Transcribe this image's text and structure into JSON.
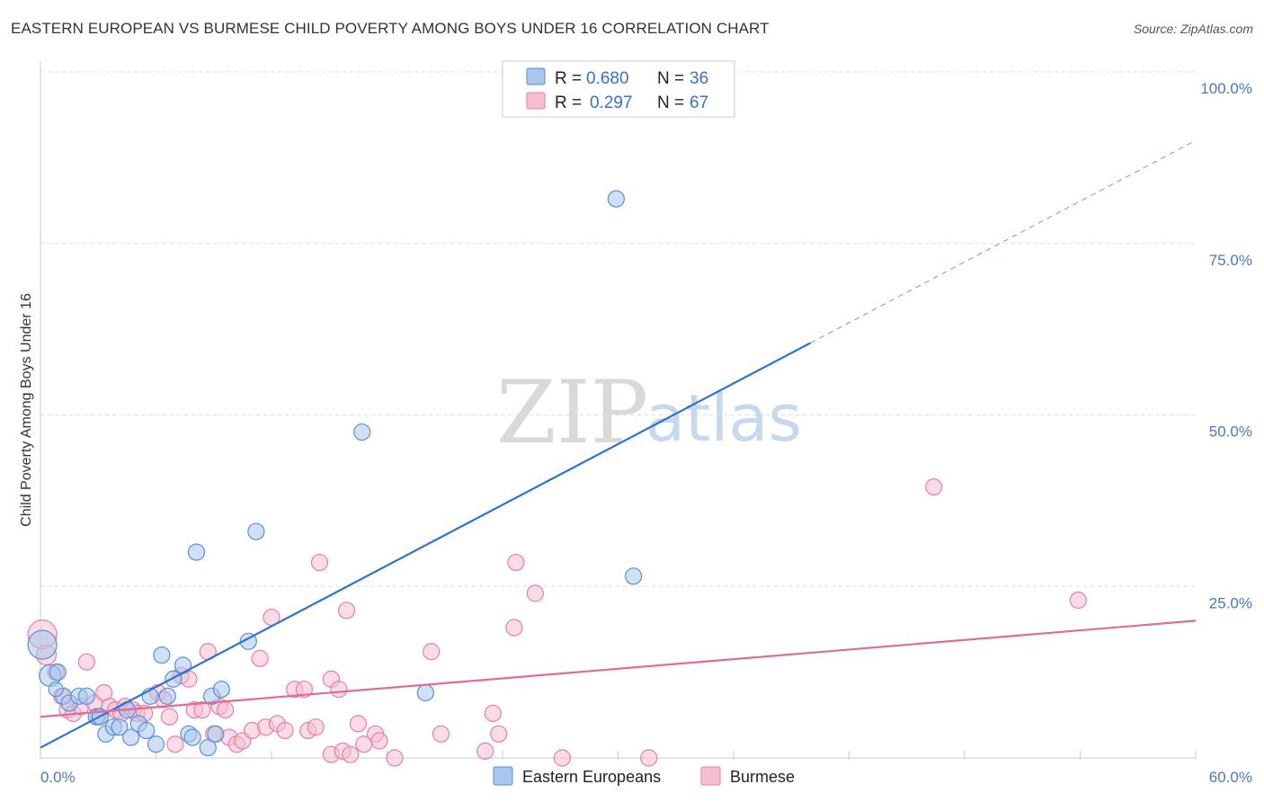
{
  "title": "EASTERN EUROPEAN VS BURMESE CHILD POVERTY AMONG BOYS UNDER 16 CORRELATION CHART",
  "source": "Source: ZipAtlas.com",
  "watermark": {
    "zip": "ZIP",
    "atlas": "atlas"
  },
  "legend_box": {
    "rows": [
      {
        "r_label": "R =",
        "r_value": "0.680",
        "n_label": "N =",
        "n_value": "36"
      },
      {
        "r_label": "R =",
        "r_value": "0.297",
        "n_label": "N =",
        "n_value": "67"
      }
    ]
  },
  "bottom_legend": [
    "Eastern Europeans",
    "Burmese"
  ],
  "colors": {
    "eastern_fill": "#a9c6ee",
    "eastern_stroke": "#5b8fd6",
    "eastern_line": "#2f73d0",
    "burmese_fill": "#f6bdd1",
    "burmese_stroke": "#e57fa4",
    "burmese_line": "#e06b98",
    "grid": "#dddddd",
    "tick_text": "#4a78c4"
  },
  "chart_data": {
    "type": "scatter",
    "title": "EASTERN EUROPEAN VS BURMESE CHILD POVERTY AMONG BOYS UNDER 16 CORRELATION CHART",
    "xlabel": "",
    "ylabel": "Child Poverty Among Boys Under 16",
    "xlim": [
      0,
      60
    ],
    "ylim": [
      0,
      100
    ],
    "x_tick_labels": [
      "0.0%",
      "60.0%"
    ],
    "y_ticks": [
      25,
      50,
      75,
      100
    ],
    "y_tick_labels": [
      "25.0%",
      "50.0%",
      "75.0%",
      "100.0%"
    ],
    "grid": true,
    "legend_position": "top-center",
    "series": [
      {
        "name": "Eastern Europeans",
        "R": 0.68,
        "N": 36,
        "trend": {
          "x0": 0,
          "y0": 1.5,
          "x1": 40,
          "y1": 60.5,
          "dashed_to_x": 60,
          "dashed_to_y": 90
        },
        "points": [
          {
            "x": 0.1,
            "y": 16.5,
            "s": 16
          },
          {
            "x": 0.5,
            "y": 12.0,
            "s": 12
          },
          {
            "x": 0.9,
            "y": 12.5,
            "s": 9
          },
          {
            "x": 1.2,
            "y": 9.0,
            "s": 9
          },
          {
            "x": 1.5,
            "y": 8.0,
            "s": 9
          },
          {
            "x": 2.0,
            "y": 9.0,
            "s": 9
          },
          {
            "x": 2.4,
            "y": 9.0,
            "s": 9
          },
          {
            "x": 2.9,
            "y": 6.0,
            "s": 9
          },
          {
            "x": 3.1,
            "y": 6.0,
            "s": 9
          },
          {
            "x": 3.4,
            "y": 3.5,
            "s": 9
          },
          {
            "x": 3.8,
            "y": 4.5,
            "s": 9
          },
          {
            "x": 4.1,
            "y": 4.5,
            "s": 9
          },
          {
            "x": 4.5,
            "y": 7.0,
            "s": 9
          },
          {
            "x": 4.7,
            "y": 3.0,
            "s": 9
          },
          {
            "x": 5.1,
            "y": 5.0,
            "s": 9
          },
          {
            "x": 5.5,
            "y": 4.0,
            "s": 9
          },
          {
            "x": 5.7,
            "y": 9.0,
            "s": 9
          },
          {
            "x": 6.0,
            "y": 2.0,
            "s": 9
          },
          {
            "x": 6.3,
            "y": 15.0,
            "s": 9
          },
          {
            "x": 6.6,
            "y": 9.0,
            "s": 9
          },
          {
            "x": 6.9,
            "y": 11.5,
            "s": 9
          },
          {
            "x": 7.4,
            "y": 13.5,
            "s": 9
          },
          {
            "x": 7.7,
            "y": 3.5,
            "s": 9
          },
          {
            "x": 7.9,
            "y": 3.0,
            "s": 9
          },
          {
            "x": 8.1,
            "y": 30.0,
            "s": 9
          },
          {
            "x": 8.7,
            "y": 1.5,
            "s": 9
          },
          {
            "x": 8.9,
            "y": 9.0,
            "s": 9
          },
          {
            "x": 9.1,
            "y": 3.5,
            "s": 9
          },
          {
            "x": 9.4,
            "y": 10.0,
            "s": 9
          },
          {
            "x": 10.8,
            "y": 17.0,
            "s": 9
          },
          {
            "x": 11.2,
            "y": 33.0,
            "s": 9
          },
          {
            "x": 16.7,
            "y": 47.5,
            "s": 9
          },
          {
            "x": 20.0,
            "y": 9.5,
            "s": 9
          },
          {
            "x": 29.9,
            "y": 81.5,
            "s": 9
          },
          {
            "x": 30.8,
            "y": 26.5,
            "s": 9
          },
          {
            "x": 0.8,
            "y": 10.0,
            "s": 8
          }
        ]
      },
      {
        "name": "Burmese",
        "R": 0.297,
        "N": 67,
        "trend": {
          "x0": 0,
          "y0": 6.0,
          "x1": 60,
          "y1": 20.0
        },
        "points": [
          {
            "x": 0.1,
            "y": 18.0,
            "s": 16
          },
          {
            "x": 0.3,
            "y": 15.0,
            "s": 11
          },
          {
            "x": 0.8,
            "y": 12.5,
            "s": 9
          },
          {
            "x": 1.1,
            "y": 9.0,
            "s": 9
          },
          {
            "x": 1.4,
            "y": 7.0,
            "s": 9
          },
          {
            "x": 1.7,
            "y": 6.5,
            "s": 9
          },
          {
            "x": 2.1,
            "y": 7.5,
            "s": 9
          },
          {
            "x": 2.4,
            "y": 14.0,
            "s": 9
          },
          {
            "x": 2.8,
            "y": 8.0,
            "s": 9
          },
          {
            "x": 3.0,
            "y": 6.0,
            "s": 9
          },
          {
            "x": 3.3,
            "y": 9.5,
            "s": 9
          },
          {
            "x": 3.6,
            "y": 7.5,
            "s": 9
          },
          {
            "x": 3.9,
            "y": 7.0,
            "s": 9
          },
          {
            "x": 4.2,
            "y": 6.5,
            "s": 9
          },
          {
            "x": 4.4,
            "y": 7.5,
            "s": 9
          },
          {
            "x": 4.8,
            "y": 7.0,
            "s": 9
          },
          {
            "x": 5.0,
            "y": 6.5,
            "s": 9
          },
          {
            "x": 5.4,
            "y": 6.5,
            "s": 9
          },
          {
            "x": 6.1,
            "y": 9.5,
            "s": 9
          },
          {
            "x": 6.4,
            "y": 8.5,
            "s": 9
          },
          {
            "x": 6.7,
            "y": 6.0,
            "s": 9
          },
          {
            "x": 7.0,
            "y": 2.0,
            "s": 9
          },
          {
            "x": 7.3,
            "y": 12.0,
            "s": 9
          },
          {
            "x": 7.7,
            "y": 11.5,
            "s": 9
          },
          {
            "x": 8.0,
            "y": 7.0,
            "s": 9
          },
          {
            "x": 8.4,
            "y": 7.0,
            "s": 9
          },
          {
            "x": 8.7,
            "y": 15.5,
            "s": 9
          },
          {
            "x": 9.0,
            "y": 3.5,
            "s": 9
          },
          {
            "x": 9.3,
            "y": 7.5,
            "s": 9
          },
          {
            "x": 9.6,
            "y": 7.0,
            "s": 9
          },
          {
            "x": 9.8,
            "y": 3.0,
            "s": 9
          },
          {
            "x": 10.2,
            "y": 2.0,
            "s": 9
          },
          {
            "x": 10.5,
            "y": 2.5,
            "s": 9
          },
          {
            "x": 11.0,
            "y": 4.0,
            "s": 9
          },
          {
            "x": 11.4,
            "y": 14.5,
            "s": 9
          },
          {
            "x": 11.7,
            "y": 4.5,
            "s": 9
          },
          {
            "x": 12.0,
            "y": 20.5,
            "s": 9
          },
          {
            "x": 12.3,
            "y": 5.0,
            "s": 9
          },
          {
            "x": 12.7,
            "y": 4.0,
            "s": 9
          },
          {
            "x": 13.2,
            "y": 10.0,
            "s": 9
          },
          {
            "x": 13.7,
            "y": 10.0,
            "s": 9
          },
          {
            "x": 13.9,
            "y": 4.0,
            "s": 9
          },
          {
            "x": 14.3,
            "y": 4.5,
            "s": 9
          },
          {
            "x": 14.5,
            "y": 28.5,
            "s": 9
          },
          {
            "x": 15.1,
            "y": 11.5,
            "s": 9
          },
          {
            "x": 15.5,
            "y": 10.0,
            "s": 9
          },
          {
            "x": 15.1,
            "y": 0.5,
            "s": 9
          },
          {
            "x": 15.7,
            "y": 1.0,
            "s": 9
          },
          {
            "x": 15.9,
            "y": 21.5,
            "s": 9
          },
          {
            "x": 16.1,
            "y": 0.5,
            "s": 9
          },
          {
            "x": 16.5,
            "y": 5.0,
            "s": 9
          },
          {
            "x": 16.8,
            "y": 2.0,
            "s": 9
          },
          {
            "x": 17.4,
            "y": 3.5,
            "s": 9
          },
          {
            "x": 17.6,
            "y": 2.5,
            "s": 9
          },
          {
            "x": 18.4,
            "y": 0.0,
            "s": 9
          },
          {
            "x": 20.3,
            "y": 15.5,
            "s": 9
          },
          {
            "x": 20.8,
            "y": 3.5,
            "s": 9
          },
          {
            "x": 23.1,
            "y": 1.0,
            "s": 9
          },
          {
            "x": 23.8,
            "y": 3.5,
            "s": 9
          },
          {
            "x": 23.5,
            "y": 6.5,
            "s": 9
          },
          {
            "x": 24.6,
            "y": 19.0,
            "s": 9
          },
          {
            "x": 24.7,
            "y": 28.5,
            "s": 9
          },
          {
            "x": 25.7,
            "y": 24.0,
            "s": 9
          },
          {
            "x": 27.1,
            "y": 0.0,
            "s": 9
          },
          {
            "x": 31.6,
            "y": 0.0,
            "s": 9
          },
          {
            "x": 46.4,
            "y": 39.5,
            "s": 9
          },
          {
            "x": 53.9,
            "y": 23.0,
            "s": 9
          }
        ]
      }
    ]
  }
}
